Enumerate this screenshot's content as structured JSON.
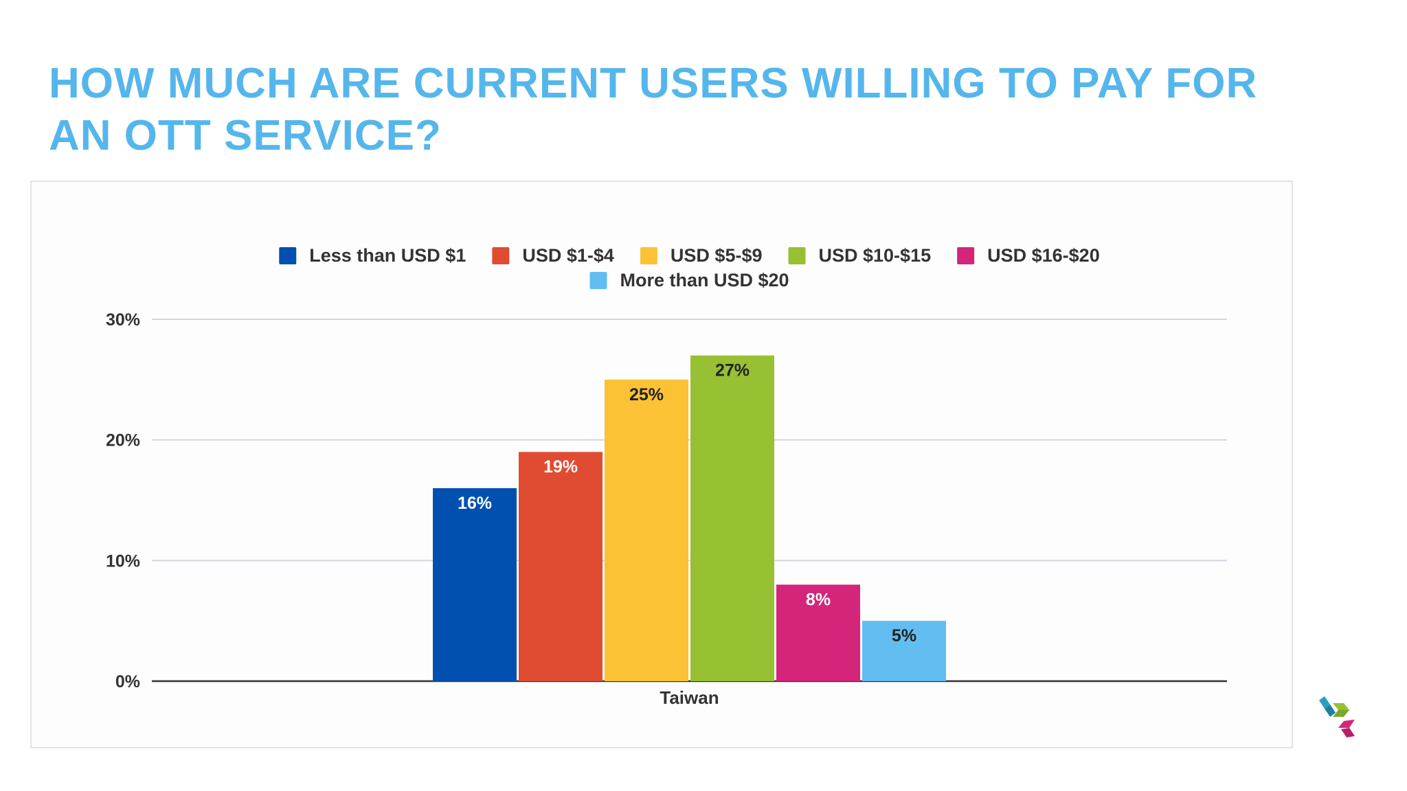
{
  "slide": {
    "title": "HOW MUCH ARE CURRENT USERS WILLING TO PAY FOR AN OTT SERVICE?"
  },
  "colors": {
    "title": "#55b6ec",
    "grid": "#d6d3dd",
    "axis": "#333333",
    "text": "#333333"
  },
  "chart_data": {
    "type": "bar",
    "categories": [
      "Taiwan"
    ],
    "series": [
      {
        "name": "Less than USD $1",
        "values": [
          16
        ],
        "label": "16%",
        "color": "#0150b0",
        "label_color": "#ffffff"
      },
      {
        "name": "USD $1-$4",
        "values": [
          19
        ],
        "label": "19%",
        "color": "#e04c32",
        "label_color": "#ffffff"
      },
      {
        "name": "USD $5-$9",
        "values": [
          25
        ],
        "label": "25%",
        "color": "#fbc235",
        "label_color": "#222222"
      },
      {
        "name": "USD $10-$15",
        "values": [
          27
        ],
        "label": "27%",
        "color": "#97c033",
        "label_color": "#222222"
      },
      {
        "name": "USD $16-$20",
        "values": [
          8
        ],
        "label": "8%",
        "color": "#d5257b",
        "label_color": "#ffffff"
      },
      {
        "name": "More than USD $20",
        "values": [
          5
        ],
        "label": "5%",
        "color": "#62bdf1",
        "label_color": "#222222"
      }
    ],
    "y_ticks": [
      0,
      10,
      20,
      30
    ],
    "y_tick_labels": [
      "0%",
      "10%",
      "20%",
      "30%"
    ],
    "ylim": [
      0,
      30
    ],
    "grid": true,
    "legend_position": "top-center"
  }
}
